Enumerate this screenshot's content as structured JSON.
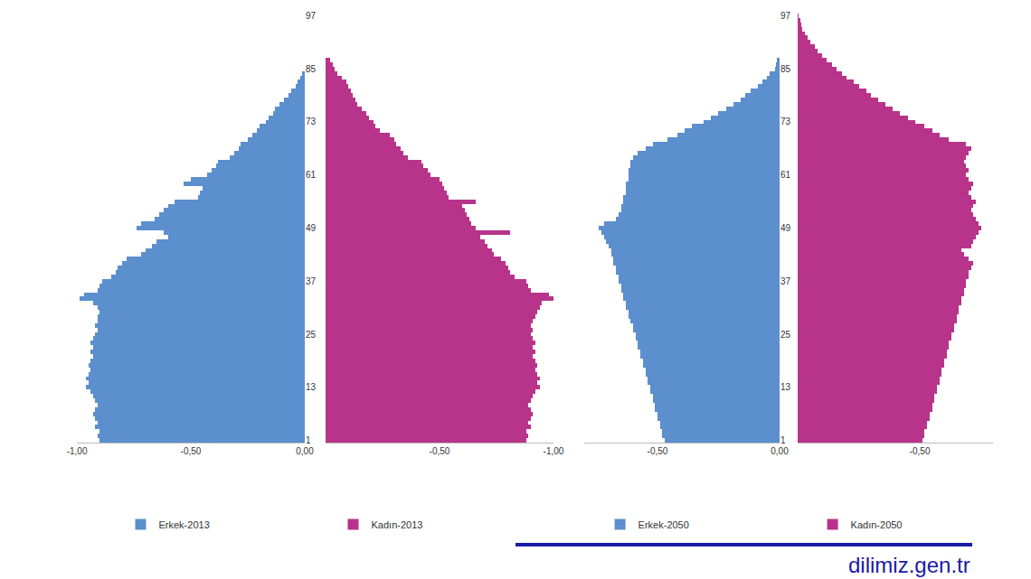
{
  "chart_data": [
    {
      "type": "bar",
      "orientation": "horizontal",
      "stacked": false,
      "grid": false,
      "categories": [
        "1",
        null,
        null,
        null,
        null,
        null,
        null,
        null,
        null,
        null,
        null,
        null,
        "13",
        null,
        null,
        null,
        null,
        null,
        null,
        null,
        null,
        null,
        null,
        null,
        "25",
        null,
        null,
        null,
        null,
        null,
        null,
        null,
        null,
        null,
        null,
        null,
        "37",
        null,
        null,
        null,
        null,
        null,
        null,
        null,
        null,
        null,
        null,
        null,
        "49",
        null,
        null,
        null,
        null,
        null,
        null,
        null,
        null,
        null,
        null,
        null,
        "61",
        null,
        null,
        null,
        null,
        null,
        null,
        null,
        null,
        null,
        null,
        null,
        "73",
        null,
        null,
        null,
        null,
        null,
        null,
        null,
        null,
        null,
        null,
        null,
        "85",
        null,
        null,
        null,
        null,
        null,
        null,
        null,
        null,
        null,
        null,
        null,
        "97"
      ],
      "series": [
        {
          "name": "Erkek-2013",
          "color": "#5b8fcd",
          "xlim": [
            -1.0,
            0
          ],
          "xticks": [
            {
              "value": -1.0,
              "label": "-1,00"
            },
            {
              "value": -0.5,
              "label": "-0,50"
            },
            {
              "value": 0,
              "label": "0,00"
            }
          ],
          "values": [
            -0.9,
            -0.91,
            -0.9,
            -0.92,
            -0.91,
            -0.92,
            -0.93,
            -0.92,
            -0.91,
            -0.92,
            -0.93,
            -0.94,
            -0.96,
            -0.95,
            -0.96,
            -0.95,
            -0.94,
            -0.95,
            -0.94,
            -0.93,
            -0.94,
            -0.93,
            -0.94,
            -0.93,
            -0.92,
            -0.91,
            -0.92,
            -0.91,
            -0.91,
            -0.9,
            -0.91,
            -0.93,
            -0.99,
            -0.97,
            -0.91,
            -0.9,
            -0.89,
            -0.85,
            -0.83,
            -0.82,
            -0.8,
            -0.78,
            -0.72,
            -0.7,
            -0.67,
            -0.65,
            -0.6,
            -0.62,
            -0.74,
            -0.72,
            -0.66,
            -0.64,
            -0.62,
            -0.6,
            -0.57,
            -0.47,
            -0.46,
            -0.45,
            -0.53,
            -0.5,
            -0.43,
            -0.41,
            -0.39,
            -0.38,
            -0.33,
            -0.31,
            -0.29,
            -0.28,
            -0.25,
            -0.23,
            -0.21,
            -0.2,
            -0.17,
            -0.16,
            -0.14,
            -0.13,
            -0.11,
            -0.09,
            -0.07,
            -0.06,
            -0.04,
            -0.03,
            -0.02,
            -0.01,
            0,
            0,
            0,
            0,
            0,
            0,
            0,
            0,
            0,
            0,
            0,
            0,
            0
          ]
        },
        {
          "name": "Kadın-2013",
          "color": "#b8338a",
          "xlim": [
            0,
            1.0
          ],
          "xticks": [
            {
              "value": 0.5,
              "label": "-0,50"
            },
            {
              "value": 1.0,
              "label": "-1,00"
            }
          ],
          "values": [
            0.88,
            0.89,
            0.88,
            0.9,
            0.89,
            0.9,
            0.91,
            0.9,
            0.89,
            0.9,
            0.91,
            0.92,
            0.94,
            0.93,
            0.94,
            0.93,
            0.92,
            0.93,
            0.92,
            0.91,
            0.92,
            0.91,
            0.92,
            0.91,
            0.9,
            0.91,
            0.9,
            0.91,
            0.92,
            0.93,
            0.94,
            0.95,
            1.0,
            0.98,
            0.9,
            0.89,
            0.88,
            0.83,
            0.81,
            0.8,
            0.79,
            0.77,
            0.74,
            0.73,
            0.71,
            0.7,
            0.68,
            0.81,
            0.66,
            0.64,
            0.63,
            0.62,
            0.61,
            0.6,
            0.66,
            0.54,
            0.53,
            0.52,
            0.51,
            0.5,
            0.46,
            0.45,
            0.43,
            0.42,
            0.36,
            0.34,
            0.33,
            0.31,
            0.3,
            0.28,
            0.24,
            0.22,
            0.21,
            0.19,
            0.18,
            0.16,
            0.14,
            0.13,
            0.12,
            0.11,
            0.1,
            0.09,
            0.07,
            0.05,
            0.04,
            0.03,
            0.02,
            0,
            0,
            0,
            0,
            0,
            0,
            0,
            0,
            0,
            0
          ]
        }
      ]
    },
    {
      "type": "bar",
      "orientation": "horizontal",
      "stacked": false,
      "grid": false,
      "categories": [
        "1",
        null,
        null,
        null,
        null,
        null,
        null,
        null,
        null,
        null,
        null,
        null,
        "13",
        null,
        null,
        null,
        null,
        null,
        null,
        null,
        null,
        null,
        null,
        null,
        "25",
        null,
        null,
        null,
        null,
        null,
        null,
        null,
        null,
        null,
        null,
        null,
        "37",
        null,
        null,
        null,
        null,
        null,
        null,
        null,
        null,
        null,
        null,
        null,
        "49",
        null,
        null,
        null,
        null,
        null,
        null,
        null,
        null,
        null,
        null,
        null,
        "61",
        null,
        null,
        null,
        null,
        null,
        null,
        null,
        null,
        null,
        null,
        null,
        "73",
        null,
        null,
        null,
        null,
        null,
        null,
        null,
        null,
        null,
        null,
        null,
        "85",
        null,
        null,
        null,
        null,
        null,
        null,
        null,
        null,
        null,
        null,
        null,
        "97"
      ],
      "series": [
        {
          "name": "Erkek-2050",
          "color": "#5b8fcd",
          "xlim": [
            -0.8,
            0
          ],
          "xticks": [
            {
              "value": -0.5,
              "label": "-0,50"
            },
            {
              "value": 0,
              "label": "0,00"
            }
          ],
          "values": [
            -0.47,
            -0.48,
            -0.48,
            -0.49,
            -0.49,
            -0.5,
            -0.5,
            -0.51,
            -0.51,
            -0.52,
            -0.52,
            -0.53,
            -0.53,
            -0.54,
            -0.54,
            -0.55,
            -0.55,
            -0.56,
            -0.56,
            -0.57,
            -0.57,
            -0.58,
            -0.58,
            -0.59,
            -0.59,
            -0.6,
            -0.6,
            -0.61,
            -0.62,
            -0.62,
            -0.63,
            -0.63,
            -0.64,
            -0.64,
            -0.65,
            -0.65,
            -0.66,
            -0.66,
            -0.67,
            -0.67,
            -0.68,
            -0.68,
            -0.69,
            -0.69,
            -0.7,
            -0.71,
            -0.72,
            -0.73,
            -0.74,
            -0.72,
            -0.67,
            -0.66,
            -0.65,
            -0.65,
            -0.64,
            -0.64,
            -0.63,
            -0.63,
            -0.63,
            -0.62,
            -0.62,
            -0.62,
            -0.61,
            -0.61,
            -0.6,
            -0.58,
            -0.55,
            -0.52,
            -0.46,
            -0.42,
            -0.39,
            -0.36,
            -0.31,
            -0.28,
            -0.25,
            -0.22,
            -0.19,
            -0.16,
            -0.14,
            -0.12,
            -0.09,
            -0.07,
            -0.05,
            -0.04,
            -0.02,
            -0.015,
            -0.01,
            0,
            0,
            0,
            0,
            0,
            0,
            0,
            0,
            0,
            0
          ]
        },
        {
          "name": "Kadın-2050",
          "color": "#b8338a",
          "xlim": [
            0,
            0.8
          ],
          "xticks": [
            {
              "value": 0.5,
              "label": "-0,50"
            }
          ],
          "values": [
            0.51,
            0.52,
            0.52,
            0.53,
            0.53,
            0.54,
            0.54,
            0.55,
            0.55,
            0.56,
            0.56,
            0.57,
            0.57,
            0.58,
            0.58,
            0.59,
            0.59,
            0.6,
            0.6,
            0.61,
            0.61,
            0.62,
            0.62,
            0.63,
            0.63,
            0.64,
            0.64,
            0.65,
            0.65,
            0.66,
            0.66,
            0.67,
            0.67,
            0.68,
            0.68,
            0.69,
            0.69,
            0.7,
            0.7,
            0.71,
            0.72,
            0.7,
            0.68,
            0.67,
            0.71,
            0.72,
            0.73,
            0.74,
            0.75,
            0.74,
            0.73,
            0.72,
            0.71,
            0.72,
            0.73,
            0.71,
            0.7,
            0.71,
            0.72,
            0.7,
            0.69,
            0.7,
            0.69,
            0.68,
            0.69,
            0.7,
            0.71,
            0.69,
            0.62,
            0.58,
            0.55,
            0.52,
            0.48,
            0.45,
            0.42,
            0.39,
            0.36,
            0.33,
            0.3,
            0.28,
            0.25,
            0.23,
            0.2,
            0.18,
            0.16,
            0.14,
            0.12,
            0.1,
            0.08,
            0.07,
            0.05,
            0.04,
            0.03,
            0.02,
            0.015,
            0.01,
            0.005
          ]
        }
      ]
    }
  ],
  "watermark": "dilimiz.gen.tr"
}
